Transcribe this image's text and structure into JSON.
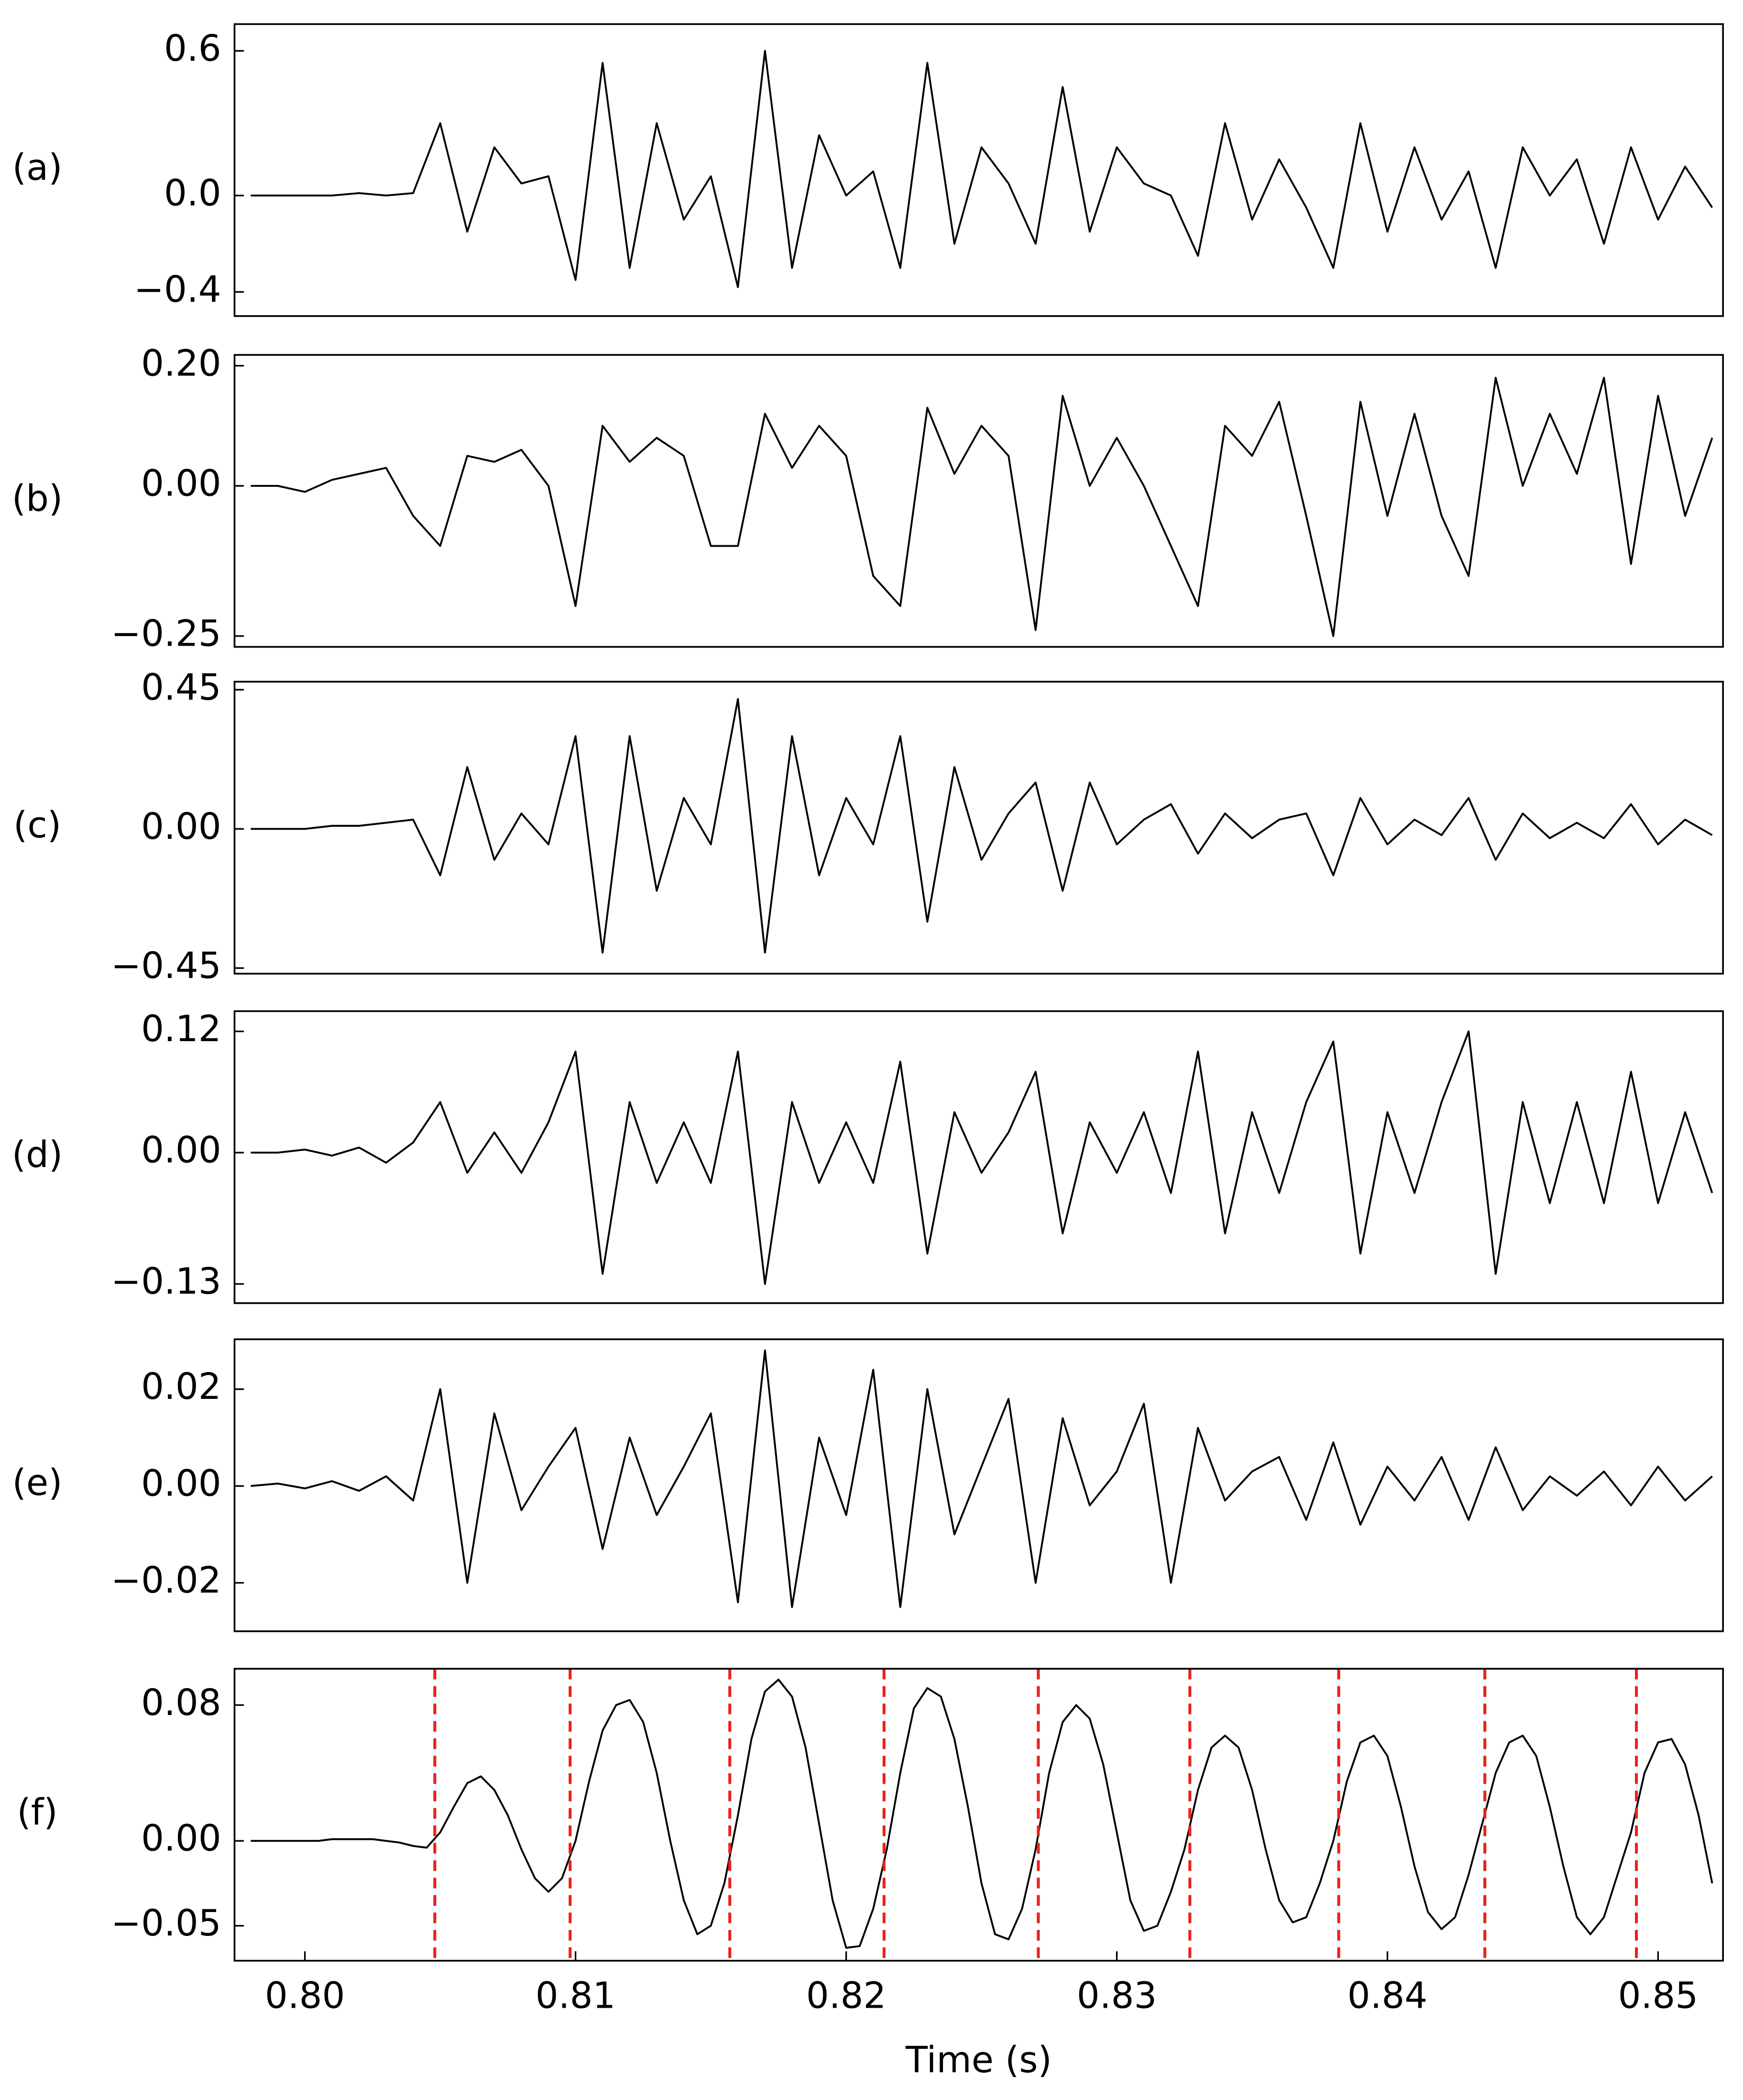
{
  "chart_data": [
    {
      "type": "line",
      "label": "(a)",
      "color": "#000000",
      "xlim": [
        0.7974,
        0.8524
      ],
      "ylim": [
        -0.5,
        0.711
      ],
      "yticks": [
        {
          "value": -0.4,
          "label": "−0.4"
        },
        {
          "value": 0,
          "label": "0.0"
        },
        0.6
      ],
      "x": [
        0.798,
        0.799,
        0.8,
        0.801,
        0.802,
        0.803,
        0.804,
        0.805,
        0.806,
        0.807,
        0.808,
        0.809,
        0.81,
        0.811,
        0.812,
        0.813,
        0.814,
        0.815,
        0.816,
        0.817,
        0.818,
        0.819,
        0.82,
        0.821,
        0.822,
        0.823,
        0.824,
        0.825,
        0.826,
        0.827,
        0.828,
        0.829,
        0.83,
        0.831,
        0.832,
        0.833,
        0.834,
        0.835,
        0.836,
        0.837,
        0.838,
        0.839,
        0.84,
        0.841,
        0.842,
        0.843,
        0.844,
        0.845,
        0.846,
        0.847,
        0.848,
        0.849,
        0.85,
        0.851,
        0.852
      ],
      "values": [
        0,
        0,
        0,
        0,
        0.01,
        0,
        0.01,
        0.3,
        -0.15,
        0.2,
        0.05,
        0.08,
        -0.35,
        0.55,
        -0.3,
        0.3,
        -0.1,
        0.08,
        -0.38,
        0.6,
        -0.3,
        0.25,
        0,
        0.1,
        -0.3,
        0.55,
        -0.2,
        0.2,
        0.05,
        -0.2,
        0.45,
        -0.15,
        0.2,
        0.05,
        0,
        -0.25,
        0.3,
        -0.1,
        0.15,
        -0.05,
        -0.3,
        0.3,
        -0.15,
        0.2,
        -0.1,
        0.1,
        -0.3,
        0.2,
        0,
        0.15,
        -0.2,
        0.2,
        -0.1,
        0.12,
        -0.05
      ]
    },
    {
      "type": "line",
      "label": "(b)",
      "color": "#000000",
      "xlim": [
        0.7974,
        0.8524
      ],
      "ylim": [
        -0.268,
        0.218
      ],
      "yticks": [
        {
          "value": -0.25,
          "label": "−0.25"
        },
        {
          "value": 0,
          "label": "0.00"
        },
        {
          "value": 0.2,
          "label": "0.20"
        }
      ],
      "x": [
        0.798,
        0.799,
        0.8,
        0.801,
        0.802,
        0.803,
        0.804,
        0.805,
        0.806,
        0.807,
        0.808,
        0.809,
        0.81,
        0.811,
        0.812,
        0.813,
        0.814,
        0.815,
        0.816,
        0.817,
        0.818,
        0.819,
        0.82,
        0.821,
        0.822,
        0.823,
        0.824,
        0.825,
        0.826,
        0.827,
        0.828,
        0.829,
        0.83,
        0.831,
        0.832,
        0.833,
        0.834,
        0.835,
        0.836,
        0.837,
        0.838,
        0.839,
        0.84,
        0.841,
        0.842,
        0.843,
        0.844,
        0.845,
        0.846,
        0.847,
        0.848,
        0.849,
        0.85,
        0.851,
        0.852
      ],
      "values": [
        0,
        0,
        -0.01,
        0.01,
        0.02,
        0.03,
        -0.05,
        -0.1,
        0.05,
        0.04,
        0.06,
        0,
        -0.2,
        0.1,
        0.04,
        0.08,
        0.05,
        -0.1,
        -0.1,
        0.12,
        0.03,
        0.1,
        0.05,
        -0.15,
        -0.2,
        0.13,
        0.02,
        0.1,
        0.05,
        -0.24,
        0.15,
        0,
        0.08,
        0,
        -0.1,
        -0.2,
        0.1,
        0.05,
        0.14,
        -0.05,
        -0.25,
        0.14,
        -0.05,
        0.12,
        -0.05,
        -0.15,
        0.18,
        0,
        0.12,
        0.02,
        0.18,
        -0.13,
        0.15,
        -0.05,
        0.08
      ]
    },
    {
      "type": "line",
      "label": "(c)",
      "color": "#000000",
      "xlim": [
        0.7974,
        0.8524
      ],
      "ylim": [
        -0.468,
        0.476
      ],
      "yticks": [
        {
          "value": -0.45,
          "label": "−0.45"
        },
        {
          "value": 0,
          "label": "0.00"
        },
        0.45
      ],
      "x": [
        0.798,
        0.799,
        0.8,
        0.801,
        0.802,
        0.803,
        0.804,
        0.805,
        0.806,
        0.807,
        0.808,
        0.809,
        0.81,
        0.811,
        0.812,
        0.813,
        0.814,
        0.815,
        0.816,
        0.817,
        0.818,
        0.819,
        0.82,
        0.821,
        0.822,
        0.823,
        0.824,
        0.825,
        0.826,
        0.827,
        0.828,
        0.829,
        0.83,
        0.831,
        0.832,
        0.833,
        0.834,
        0.835,
        0.836,
        0.837,
        0.838,
        0.839,
        0.84,
        0.841,
        0.842,
        0.843,
        0.844,
        0.845,
        0.846,
        0.847,
        0.848,
        0.849,
        0.85,
        0.851,
        0.852
      ],
      "values": [
        0,
        0,
        0,
        0.01,
        0.01,
        0.02,
        0.03,
        -0.15,
        0.2,
        -0.1,
        0.05,
        -0.05,
        0.3,
        -0.4,
        0.3,
        -0.2,
        0.1,
        -0.05,
        0.42,
        -0.4,
        0.3,
        -0.15,
        0.1,
        -0.05,
        0.3,
        -0.3,
        0.2,
        -0.1,
        0.05,
        0.15,
        -0.2,
        0.15,
        -0.05,
        0.03,
        0.08,
        -0.08,
        0.05,
        -0.03,
        0.03,
        0.05,
        -0.15,
        0.1,
        -0.05,
        0.03,
        -0.02,
        0.1,
        -0.1,
        0.05,
        -0.03,
        0.02,
        -0.03,
        0.08,
        -0.05,
        0.03,
        -0.02
      ]
    },
    {
      "type": "line",
      "label": "(d)",
      "color": "#000000",
      "xlim": [
        0.7974,
        0.8524
      ],
      "ylim": [
        -0.149,
        0.14
      ],
      "yticks": [
        {
          "value": -0.13,
          "label": "−0.13"
        },
        {
          "value": 0,
          "label": "0.00"
        },
        0.12
      ],
      "x": [
        0.798,
        0.799,
        0.8,
        0.801,
        0.802,
        0.803,
        0.804,
        0.805,
        0.806,
        0.807,
        0.808,
        0.809,
        0.81,
        0.811,
        0.812,
        0.813,
        0.814,
        0.815,
        0.816,
        0.817,
        0.818,
        0.819,
        0.82,
        0.821,
        0.822,
        0.823,
        0.824,
        0.825,
        0.826,
        0.827,
        0.828,
        0.829,
        0.83,
        0.831,
        0.832,
        0.833,
        0.834,
        0.835,
        0.836,
        0.837,
        0.838,
        0.839,
        0.84,
        0.841,
        0.842,
        0.843,
        0.844,
        0.845,
        0.846,
        0.847,
        0.848,
        0.849,
        0.85,
        0.851,
        0.852
      ],
      "values": [
        0,
        0,
        0.003,
        -0.003,
        0.005,
        -0.01,
        0.01,
        0.05,
        -0.02,
        0.02,
        -0.02,
        0.03,
        0.1,
        -0.12,
        0.05,
        -0.03,
        0.03,
        -0.03,
        0.1,
        -0.13,
        0.05,
        -0.03,
        0.03,
        -0.03,
        0.09,
        -0.1,
        0.04,
        -0.02,
        0.02,
        0.08,
        -0.08,
        0.03,
        -0.02,
        0.04,
        -0.04,
        0.1,
        -0.08,
        0.04,
        -0.04,
        0.05,
        0.11,
        -0.1,
        0.04,
        -0.04,
        0.05,
        0.12,
        -0.12,
        0.05,
        -0.05,
        0.05,
        -0.05,
        0.08,
        -0.05,
        0.04,
        -0.04
      ]
    },
    {
      "type": "line",
      "label": "(e)",
      "color": "#000000",
      "xlim": [
        0.7974,
        0.8524
      ],
      "ylim": [
        -0.03,
        0.0303
      ],
      "yticks": [
        {
          "value": -0.02,
          "label": "−0.02"
        },
        {
          "value": 0,
          "label": "0.00"
        },
        {
          "value": 0.02,
          "label": "0.02"
        }
      ],
      "x": [
        0.798,
        0.799,
        0.8,
        0.801,
        0.802,
        0.803,
        0.804,
        0.805,
        0.806,
        0.807,
        0.808,
        0.809,
        0.81,
        0.811,
        0.812,
        0.813,
        0.814,
        0.815,
        0.816,
        0.817,
        0.818,
        0.819,
        0.82,
        0.821,
        0.822,
        0.823,
        0.824,
        0.825,
        0.826,
        0.827,
        0.828,
        0.829,
        0.83,
        0.831,
        0.832,
        0.833,
        0.834,
        0.835,
        0.836,
        0.837,
        0.838,
        0.839,
        0.84,
        0.841,
        0.842,
        0.843,
        0.844,
        0.845,
        0.846,
        0.847,
        0.848,
        0.849,
        0.85,
        0.851,
        0.852
      ],
      "values": [
        0,
        0.0005,
        -0.0005,
        0.001,
        -0.001,
        0.002,
        -0.003,
        0.02,
        -0.02,
        0.015,
        -0.005,
        0.004,
        0.012,
        -0.013,
        0.01,
        -0.006,
        0.004,
        0.015,
        -0.024,
        0.028,
        -0.025,
        0.01,
        -0.006,
        0.024,
        -0.025,
        0.02,
        -0.01,
        0.004,
        0.018,
        -0.02,
        0.014,
        -0.004,
        0.003,
        0.017,
        -0.02,
        0.012,
        -0.003,
        0.003,
        0.006,
        -0.007,
        0.009,
        -0.008,
        0.004,
        -0.003,
        0.006,
        -0.007,
        0.008,
        -0.005,
        0.002,
        -0.002,
        0.003,
        -0.004,
        0.004,
        -0.003,
        0.002
      ]
    },
    {
      "type": "line",
      "label": "(f)",
      "color": "#000000",
      "xlabel": "Time (s)",
      "xlim": [
        0.7974,
        0.8524
      ],
      "ylim": [
        -0.0706,
        0.1014
      ],
      "yticks": [
        {
          "value": -0.05,
          "label": "−0.05"
        },
        {
          "value": 0,
          "label": "0.00"
        },
        {
          "value": 0.08,
          "label": "0.08"
        }
      ],
      "xticks": [
        {
          "value": 0.8,
          "label": "0.80"
        },
        0.81,
        0.82,
        0.83,
        0.84,
        0.85
      ],
      "vlines": {
        "color": "#e8221c",
        "values": [
          0.8048,
          0.8098,
          0.8157,
          0.8214,
          0.8271,
          0.8327,
          0.8382,
          0.8436,
          0.8492
        ]
      },
      "x": [
        0.798,
        0.7985,
        0.799,
        0.7995,
        0.8,
        0.8005,
        0.801,
        0.8015,
        0.802,
        0.8025,
        0.803,
        0.8035,
        0.804,
        0.8045,
        0.805,
        0.8055,
        0.806,
        0.8065,
        0.807,
        0.8075,
        0.808,
        0.8085,
        0.809,
        0.8095,
        0.81,
        0.8105,
        0.811,
        0.8115,
        0.812,
        0.8125,
        0.813,
        0.8135,
        0.814,
        0.8145,
        0.815,
        0.8155,
        0.816,
        0.8165,
        0.817,
        0.8175,
        0.818,
        0.8185,
        0.819,
        0.8195,
        0.82,
        0.8205,
        0.821,
        0.8215,
        0.822,
        0.8225,
        0.823,
        0.8235,
        0.824,
        0.8245,
        0.825,
        0.8255,
        0.826,
        0.8265,
        0.827,
        0.8275,
        0.828,
        0.8285,
        0.829,
        0.8295,
        0.83,
        0.8305,
        0.831,
        0.8315,
        0.832,
        0.8325,
        0.833,
        0.8335,
        0.834,
        0.8345,
        0.835,
        0.8355,
        0.836,
        0.8365,
        0.837,
        0.8375,
        0.838,
        0.8385,
        0.839,
        0.8395,
        0.84,
        0.8405,
        0.841,
        0.8415,
        0.842,
        0.8425,
        0.843,
        0.8435,
        0.844,
        0.8445,
        0.845,
        0.8455,
        0.846,
        0.8465,
        0.847,
        0.8475,
        0.848,
        0.8485,
        0.849,
        0.8495,
        0.85,
        0.8505,
        0.851,
        0.8515,
        0.852
      ],
      "values": [
        0,
        0,
        0,
        0,
        0,
        0,
        0.001,
        0.001,
        0.001,
        0.001,
        0,
        -0.001,
        -0.003,
        -0.004,
        0.005,
        0.02,
        0.034,
        0.038,
        0.03,
        0.015,
        -0.005,
        -0.022,
        -0.03,
        -0.022,
        0,
        0.035,
        0.065,
        0.08,
        0.083,
        0.07,
        0.04,
        0,
        -0.035,
        -0.055,
        -0.05,
        -0.025,
        0.015,
        0.06,
        0.088,
        0.095,
        0.085,
        0.055,
        0.01,
        -0.035,
        -0.063,
        -0.062,
        -0.04,
        -0.005,
        0.04,
        0.078,
        0.09,
        0.085,
        0.06,
        0.02,
        -0.025,
        -0.055,
        -0.058,
        -0.04,
        -0.005,
        0.04,
        0.07,
        0.08,
        0.072,
        0.045,
        0.005,
        -0.035,
        -0.053,
        -0.05,
        -0.03,
        -0.005,
        0.03,
        0.055,
        0.062,
        0.055,
        0.03,
        -0.005,
        -0.035,
        -0.048,
        -0.045,
        -0.025,
        0,
        0.035,
        0.058,
        0.062,
        0.05,
        0.02,
        -0.015,
        -0.042,
        -0.052,
        -0.045,
        -0.02,
        0.01,
        0.04,
        0.058,
        0.062,
        0.05,
        0.02,
        -0.015,
        -0.045,
        -0.055,
        -0.045,
        -0.02,
        0.005,
        0.04,
        0.058,
        0.06,
        0.045,
        0.015,
        -0.025
      ]
    }
  ]
}
